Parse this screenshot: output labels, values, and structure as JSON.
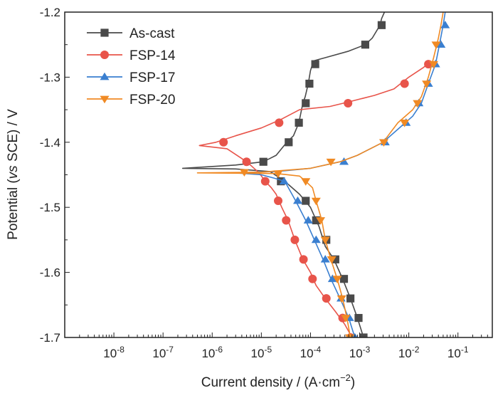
{
  "chart_data": {
    "type": "line",
    "xlabel": {
      "main": "Current density / (A·cm",
      "sup": "−2",
      "end": ")"
    },
    "ylabel": {
      "before": "Potential (",
      "italic": "vs",
      "after": " SCE) / V"
    },
    "x_scale": "log",
    "xlim": [
      1e-09,
      0.5
    ],
    "ylim": [
      -1.7,
      -1.2
    ],
    "x_ticks": [
      {
        "exp": -8,
        "base": "10",
        "sup": "-8"
      },
      {
        "exp": -7,
        "base": "10",
        "sup": "-7"
      },
      {
        "exp": -6,
        "base": "10",
        "sup": "-6"
      },
      {
        "exp": -5,
        "base": "10",
        "sup": "-5"
      },
      {
        "exp": -4,
        "base": "10",
        "sup": "-4"
      },
      {
        "exp": -3,
        "base": "10",
        "sup": "-3"
      },
      {
        "exp": -2,
        "base": "10",
        "sup": "-2"
      },
      {
        "exp": -1,
        "base": "10",
        "sup": "-1"
      }
    ],
    "y_ticks": [
      {
        "value": -1.2,
        "label": "-1.2"
      },
      {
        "value": -1.3,
        "label": "-1.3"
      },
      {
        "value": -1.4,
        "label": "-1.4"
      },
      {
        "value": -1.5,
        "label": "-1.5"
      },
      {
        "value": -1.6,
        "label": "-1.6"
      },
      {
        "value": -1.7,
        "label": "-1.7"
      }
    ],
    "grid": false,
    "legend_position": "top-left",
    "series": [
      {
        "name": "As-cast",
        "color": "#4a4a4a",
        "marker": "square",
        "line": [
          [
            0.0032,
            -1.2
          ],
          [
            0.0028,
            -1.21
          ],
          [
            0.0026,
            -1.22
          ],
          [
            0.0018,
            -1.24
          ],
          [
            0.0013,
            -1.25
          ],
          [
            0.0006,
            -1.26
          ],
          [
            0.0002,
            -1.27
          ],
          [
            0.000115,
            -1.275
          ],
          [
            0.0001,
            -1.29
          ],
          [
            9e-05,
            -1.31
          ],
          [
            7.8e-05,
            -1.33
          ],
          [
            7e-05,
            -1.34
          ],
          [
            5.8e-05,
            -1.37
          ],
          [
            4.5e-05,
            -1.39
          ],
          [
            3.3e-05,
            -1.4
          ],
          [
            2e-05,
            -1.42
          ],
          [
            1.1e-05,
            -1.43
          ],
          [
            3e-06,
            -1.435
          ],
          [
            2.5e-07,
            -1.44
          ],
          [
            3e-06,
            -1.441
          ],
          [
            1.5e-05,
            -1.445
          ],
          [
            3e-05,
            -1.46
          ],
          [
            6e-05,
            -1.48
          ],
          [
            0.0001,
            -1.5
          ],
          [
            0.00015,
            -1.53
          ],
          [
            0.0002,
            -1.56
          ],
          [
            0.0003,
            -1.58
          ],
          [
            0.00045,
            -1.61
          ],
          [
            0.00065,
            -1.64
          ],
          [
            0.0009,
            -1.67
          ],
          [
            0.0012,
            -1.7
          ]
        ],
        "points": [
          [
            0.0028,
            -1.22
          ],
          [
            0.0013,
            -1.25
          ],
          [
            0.000125,
            -1.28
          ],
          [
            9.5e-05,
            -1.31
          ],
          [
            8e-05,
            -1.34
          ],
          [
            5.8e-05,
            -1.37
          ],
          [
            3.6e-05,
            -1.4
          ],
          [
            1.1e-05,
            -1.43
          ],
          [
            2.5e-05,
            -1.46
          ],
          [
            8e-05,
            -1.49
          ],
          [
            0.00013,
            -1.52
          ],
          [
            0.00021,
            -1.55
          ],
          [
            0.00032,
            -1.58
          ],
          [
            0.00048,
            -1.61
          ],
          [
            0.00065,
            -1.64
          ],
          [
            0.00095,
            -1.67
          ],
          [
            0.0012,
            -1.7
          ]
        ]
      },
      {
        "name": "FSP-14",
        "color": "#e8544a",
        "marker": "circle",
        "line": [
          [
            0.028,
            -1.275
          ],
          [
            0.02,
            -1.285
          ],
          [
            0.01,
            -1.3
          ],
          [
            0.005,
            -1.318
          ],
          [
            0.002,
            -1.328
          ],
          [
            0.0006,
            -1.338
          ],
          [
            0.00025,
            -1.345
          ],
          [
            6e-05,
            -1.35
          ],
          [
            2.5e-05,
            -1.365
          ],
          [
            1e-05,
            -1.378
          ],
          [
            3e-06,
            -1.39
          ],
          [
            1.2e-06,
            -1.4
          ],
          [
            5.5e-07,
            -1.405
          ],
          [
            2e-06,
            -1.41
          ],
          [
            4e-06,
            -1.425
          ],
          [
            6e-06,
            -1.435
          ],
          [
            9e-06,
            -1.447
          ],
          [
            1.2e-05,
            -1.46
          ],
          [
            1.6e-05,
            -1.47
          ],
          [
            2e-05,
            -1.48
          ],
          [
            2.6e-05,
            -1.5
          ],
          [
            3.5e-05,
            -1.52
          ],
          [
            4.8e-05,
            -1.55
          ],
          [
            7e-05,
            -1.58
          ],
          [
            0.0001,
            -1.6
          ],
          [
            0.00013,
            -1.62
          ],
          [
            0.0002,
            -1.64
          ],
          [
            0.00032,
            -1.66
          ],
          [
            0.0005,
            -1.68
          ],
          [
            0.0007,
            -1.7
          ]
        ],
        "points": [
          [
            0.025,
            -1.28
          ],
          [
            0.0082,
            -1.31
          ],
          [
            0.00058,
            -1.34
          ],
          [
            2.3e-05,
            -1.37
          ],
          [
            1.7e-06,
            -1.4
          ],
          [
            5e-06,
            -1.43
          ],
          [
            1.2e-05,
            -1.46
          ],
          [
            2.2e-05,
            -1.49
          ],
          [
            3.2e-05,
            -1.52
          ],
          [
            4.8e-05,
            -1.55
          ],
          [
            7.2e-05,
            -1.58
          ],
          [
            0.00011,
            -1.61
          ],
          [
            0.00021,
            -1.64
          ],
          [
            0.00045,
            -1.67
          ],
          [
            0.00065,
            -1.7
          ]
        ]
      },
      {
        "name": "FSP-17",
        "color": "#3a7fd0",
        "marker": "triangle-up",
        "line": [
          [
            0.055,
            -1.2
          ],
          [
            0.05,
            -1.22
          ],
          [
            0.042,
            -1.25
          ],
          [
            0.035,
            -1.28
          ],
          [
            0.025,
            -1.31
          ],
          [
            0.018,
            -1.34
          ],
          [
            0.012,
            -1.36
          ],
          [
            0.006,
            -1.38
          ],
          [
            0.003,
            -1.4
          ],
          [
            0.0009,
            -1.42
          ],
          [
            0.0004,
            -1.43
          ],
          [
            0.0001,
            -1.44
          ],
          [
            2e-05,
            -1.445
          ],
          [
            3e-06,
            -1.447
          ],
          [
            1e-05,
            -1.45
          ],
          [
            1.8e-05,
            -1.455
          ],
          [
            3e-05,
            -1.46
          ],
          [
            5e-05,
            -1.49
          ],
          [
            8e-05,
            -1.52
          ],
          [
            0.00012,
            -1.55
          ],
          [
            0.00018,
            -1.58
          ],
          [
            0.00026,
            -1.61
          ],
          [
            0.0004,
            -1.64
          ],
          [
            0.0006,
            -1.67
          ],
          [
            0.0008,
            -1.7
          ]
        ],
        "points": [
          [
            0.055,
            -1.22
          ],
          [
            0.045,
            -1.25
          ],
          [
            0.035,
            -1.28
          ],
          [
            0.025,
            -1.31
          ],
          [
            0.016,
            -1.34
          ],
          [
            0.0088,
            -1.37
          ],
          [
            0.0033,
            -1.4
          ],
          [
            0.00048,
            -1.43
          ],
          [
            2.9e-05,
            -1.46
          ],
          [
            5.5e-05,
            -1.49
          ],
          [
            9e-05,
            -1.52
          ],
          [
            0.00013,
            -1.55
          ],
          [
            0.0002,
            -1.58
          ],
          [
            0.00028,
            -1.61
          ],
          [
            0.00042,
            -1.64
          ],
          [
            0.00062,
            -1.67
          ],
          [
            0.0008,
            -1.7
          ]
        ]
      },
      {
        "name": "FSP-20",
        "color": "#f08a24",
        "marker": "triangle-down",
        "line": [
          [
            0.05,
            -1.2
          ],
          [
            0.045,
            -1.22
          ],
          [
            0.04,
            -1.24
          ],
          [
            0.032,
            -1.27
          ],
          [
            0.025,
            -1.3
          ],
          [
            0.018,
            -1.33
          ],
          [
            0.012,
            -1.35
          ],
          [
            0.006,
            -1.37
          ],
          [
            0.003,
            -1.4
          ],
          [
            0.0009,
            -1.42
          ],
          [
            0.0004,
            -1.43
          ],
          [
            0.0001,
            -1.44
          ],
          [
            1e-05,
            -1.446
          ],
          [
            5e-07,
            -1.447
          ],
          [
            2e-05,
            -1.448
          ],
          [
            6e-05,
            -1.452
          ],
          [
            8e-05,
            -1.46
          ],
          [
            0.00011,
            -1.47
          ],
          [
            0.00013,
            -1.49
          ],
          [
            0.00017,
            -1.52
          ],
          [
            0.0002,
            -1.55
          ],
          [
            0.00026,
            -1.58
          ],
          [
            0.00035,
            -1.61
          ],
          [
            0.00045,
            -1.64
          ],
          [
            0.00055,
            -1.67
          ],
          [
            0.00065,
            -1.7
          ]
        ],
        "points": [
          [
            0.036,
            -1.25
          ],
          [
            0.032,
            -1.28
          ],
          [
            0.023,
            -1.31
          ],
          [
            0.015,
            -1.34
          ],
          [
            0.0082,
            -1.37
          ],
          [
            0.0031,
            -1.4
          ],
          [
            0.00026,
            -1.43
          ],
          [
            4.5e-06,
            -1.446
          ],
          [
            2.2e-05,
            -1.448
          ],
          [
            8e-05,
            -1.46
          ],
          [
            0.00013,
            -1.49
          ],
          [
            0.00016,
            -1.52
          ],
          [
            0.0002,
            -1.55
          ],
          [
            0.00027,
            -1.58
          ],
          [
            0.00035,
            -1.61
          ],
          [
            0.00043,
            -1.64
          ],
          [
            0.00052,
            -1.67
          ],
          [
            0.00063,
            -1.7
          ]
        ]
      }
    ]
  }
}
